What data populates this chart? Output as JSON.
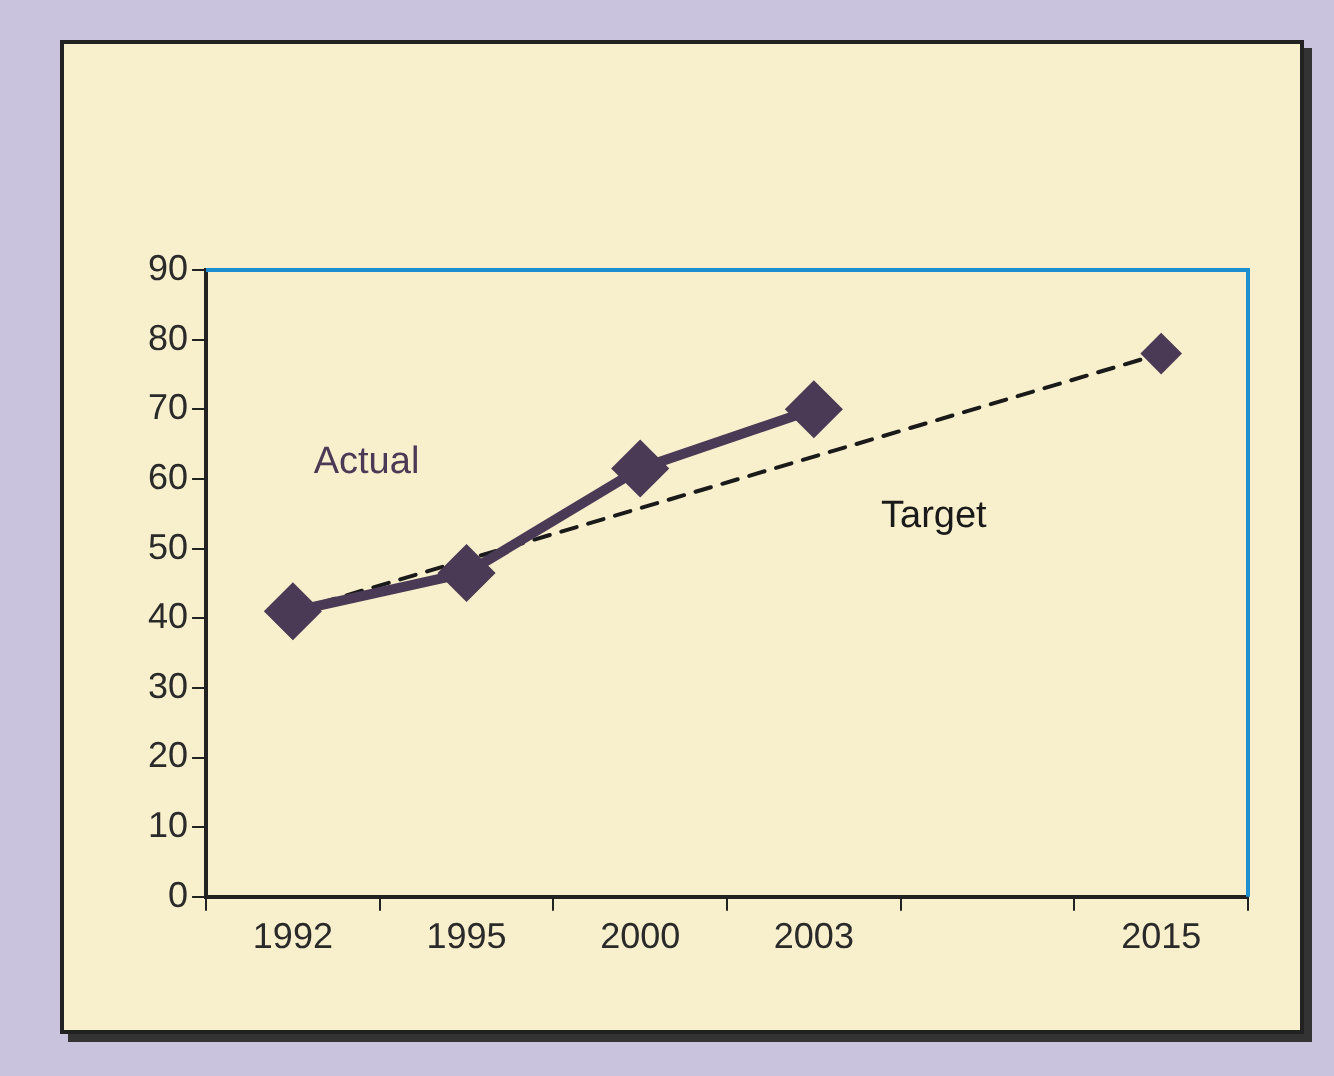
{
  "chart_data": {
    "type": "line",
    "categories": [
      "1992",
      "1995",
      "2000",
      "2003",
      null,
      "2015"
    ],
    "series": [
      {
        "name": "Actual",
        "color": "#4b3a55",
        "values": [
          41,
          46.5,
          61.5,
          70,
          null,
          null
        ],
        "line_style": "solid"
      },
      {
        "name": "Target",
        "color": "#1a1a1a",
        "values": [
          41,
          null,
          null,
          null,
          null,
          78
        ],
        "line_style": "dashed"
      }
    ],
    "ylim": [
      0,
      90
    ],
    "yticks": [
      0,
      10,
      20,
      30,
      40,
      50,
      60,
      70,
      80,
      90
    ],
    "grid": false,
    "legend": false,
    "marker": "diamond"
  }
}
